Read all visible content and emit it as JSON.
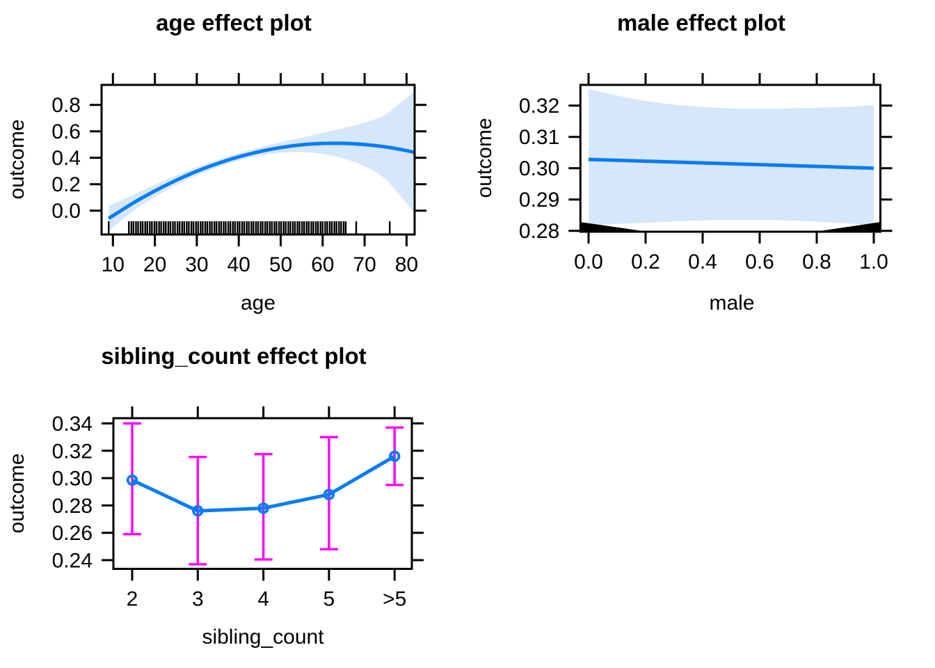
{
  "figure": {
    "background": "#ffffff"
  },
  "colors": {
    "fit_line": "#087cf5",
    "band": "#d6e7fa",
    "error_bar": "#ff00ff",
    "point": "#087cf5",
    "rug": "#000000",
    "axis": "#000000",
    "text": "#000000"
  },
  "chart_data": [
    {
      "type": "line",
      "title": "age effect plot",
      "xlabel": "age",
      "ylabel": "outcome",
      "smooth": true,
      "xlim": [
        7.3,
        81.9
      ],
      "ylim": [
        -0.18,
        0.95
      ],
      "x_ticks": [
        10,
        20,
        30,
        40,
        50,
        60,
        70,
        80
      ],
      "x_tick_labels": [
        "10",
        "20",
        "30",
        "40",
        "50",
        "60",
        "70",
        "80"
      ],
      "y_ticks": [
        0.0,
        0.2,
        0.4,
        0.6,
        0.8
      ],
      "y_tick_labels": [
        "0.0",
        "0.2",
        "0.4",
        "0.6",
        "0.8"
      ],
      "x": [
        9,
        15,
        20,
        25,
        30,
        35,
        40,
        45,
        50,
        55,
        60,
        65,
        70,
        75,
        80,
        81.9
      ],
      "fit": [
        -0.059,
        0.061,
        0.149,
        0.228,
        0.298,
        0.357,
        0.407,
        0.447,
        0.477,
        0.498,
        0.508,
        0.509,
        0.5,
        0.482,
        0.454,
        0.44
      ],
      "band": {
        "lower": [
          -0.154,
          0.001,
          0.102,
          0.191,
          0.267,
          0.329,
          0.379,
          0.415,
          0.437,
          0.443,
          0.428,
          0.394,
          0.335,
          0.237,
          0.054,
          -0.018
        ],
        "upper": [
          0.036,
          0.121,
          0.196,
          0.265,
          0.329,
          0.385,
          0.435,
          0.479,
          0.517,
          0.553,
          0.588,
          0.624,
          0.665,
          0.727,
          0.854,
          0.898
        ]
      },
      "rug": [
        9.0,
        13.8,
        14.4,
        14.9,
        15.5,
        16.0,
        16.6,
        17.1,
        17.7,
        18.2,
        18.8,
        19.3,
        19.9,
        20.4,
        21.0,
        21.5,
        22.1,
        22.6,
        23.2,
        23.7,
        24.3,
        24.8,
        25.4,
        25.9,
        26.5,
        27.0,
        27.6,
        28.1,
        28.7,
        29.2,
        29.8,
        30.3,
        30.9,
        31.4,
        32.0,
        32.5,
        33.1,
        33.6,
        34.2,
        34.7,
        35.3,
        35.8,
        36.4,
        36.9,
        37.5,
        38.0,
        38.6,
        39.1,
        39.7,
        40.2,
        40.8,
        41.3,
        41.9,
        42.4,
        43.0,
        43.5,
        44.1,
        44.6,
        45.2,
        45.7,
        46.3,
        46.8,
        47.4,
        47.9,
        48.5,
        49.0,
        49.6,
        50.1,
        50.7,
        51.2,
        51.8,
        52.3,
        52.9,
        53.4,
        54.0,
        54.5,
        55.1,
        55.6,
        56.2,
        56.7,
        57.3,
        57.8,
        58.4,
        58.9,
        59.5,
        60.0,
        60.6,
        61.1,
        61.7,
        62.2,
        62.8,
        63.3,
        63.9,
        64.4,
        65.0,
        65.5,
        68.0,
        76.0
      ]
    },
    {
      "type": "line",
      "title": "male effect plot",
      "xlabel": "male",
      "ylabel": "outcome",
      "smooth": true,
      "xlim": [
        -0.0285,
        1.0232
      ],
      "ylim": [
        0.2797,
        0.3266
      ],
      "x_ticks": [
        0.0,
        0.2,
        0.4,
        0.6,
        0.8,
        1.0
      ],
      "x_tick_labels": [
        "0.0",
        "0.2",
        "0.4",
        "0.6",
        "0.8",
        "1.0"
      ],
      "y_ticks": [
        0.28,
        0.29,
        0.3,
        0.31,
        0.32
      ],
      "y_tick_labels": [
        "0.28",
        "0.29",
        "0.30",
        "0.31",
        "0.32"
      ],
      "x": [
        0.0,
        0.1,
        0.2,
        0.3,
        0.4,
        0.5,
        0.6,
        0.7,
        0.8,
        0.9,
        1.0
      ],
      "fit": [
        0.3028,
        0.30252,
        0.30224,
        0.30196,
        0.30168,
        0.3014,
        0.30112,
        0.30084,
        0.30056,
        0.30028,
        0.3
      ],
      "band": {
        "lower": [
          0.2817,
          0.2822,
          0.2826,
          0.283,
          0.2833,
          0.2835,
          0.2835,
          0.2833,
          0.2829,
          0.2824,
          0.2818
        ],
        "upper": [
          0.3253,
          0.3232,
          0.3215,
          0.3203,
          0.3196,
          0.3191,
          0.319,
          0.3191,
          0.3193,
          0.3196,
          0.3201
        ]
      },
      "rug_blocks": [
        {
          "x1": -0.0285,
          "x2": 0.2,
          "y1": 0.2828,
          "y2": 0.2798
        },
        {
          "x1": 0.8,
          "x2": 1.0232,
          "y1": 0.2798,
          "y2": 0.2828
        }
      ]
    },
    {
      "type": "line",
      "title": "sibling_count effect plot",
      "xlabel": "sibling_count",
      "ylabel": "outcome",
      "smooth": false,
      "show_points": true,
      "ylim": [
        0.2336,
        0.3428
      ],
      "categories": [
        "2",
        "3",
        "4",
        "5",
        ">5"
      ],
      "x_tick_labels": [
        "2",
        "3",
        "4",
        "5",
        ">5"
      ],
      "y_ticks": [
        0.24,
        0.26,
        0.28,
        0.3,
        0.32,
        0.34
      ],
      "y_tick_labels": [
        "0.24",
        "0.26",
        "0.28",
        "0.30",
        "0.32",
        "0.34"
      ],
      "fit": [
        0.2985,
        0.276,
        0.278,
        0.288,
        0.316
      ],
      "error_bars": {
        "lower": [
          0.259,
          0.237,
          0.2405,
          0.248,
          0.295
        ],
        "upper": [
          0.34,
          0.3155,
          0.3175,
          0.33,
          0.337
        ]
      }
    }
  ]
}
